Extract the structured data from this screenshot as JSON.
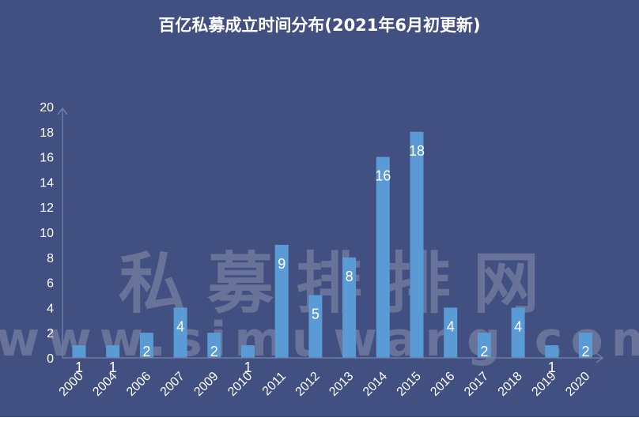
{
  "chart_data": {
    "type": "bar",
    "title": "百亿私募成立时间分布(2021年6月初更新)",
    "xlabel": "",
    "ylabel": "",
    "categories": [
      "2000",
      "2004",
      "2006",
      "2007",
      "2009",
      "2010",
      "2011",
      "2012",
      "2013",
      "2014",
      "2015",
      "2016",
      "2017",
      "2018",
      "2019",
      "2020"
    ],
    "values": [
      1,
      1,
      2,
      4,
      2,
      1,
      9,
      5,
      8,
      16,
      18,
      4,
      2,
      4,
      1,
      2
    ],
    "ylim": [
      0,
      20
    ],
    "yticks": [
      0,
      2,
      4,
      6,
      8,
      10,
      12,
      14,
      16,
      18,
      20
    ],
    "grid": false,
    "legend": null,
    "data_labels": true,
    "colors": {
      "background": "#414F81",
      "bar": "#5B9BD5",
      "axis": "#6F7BA8",
      "text": "#FFFFFF"
    }
  },
  "watermark": {
    "cn": "私募排排网",
    "en": "www.simuwang.com"
  }
}
